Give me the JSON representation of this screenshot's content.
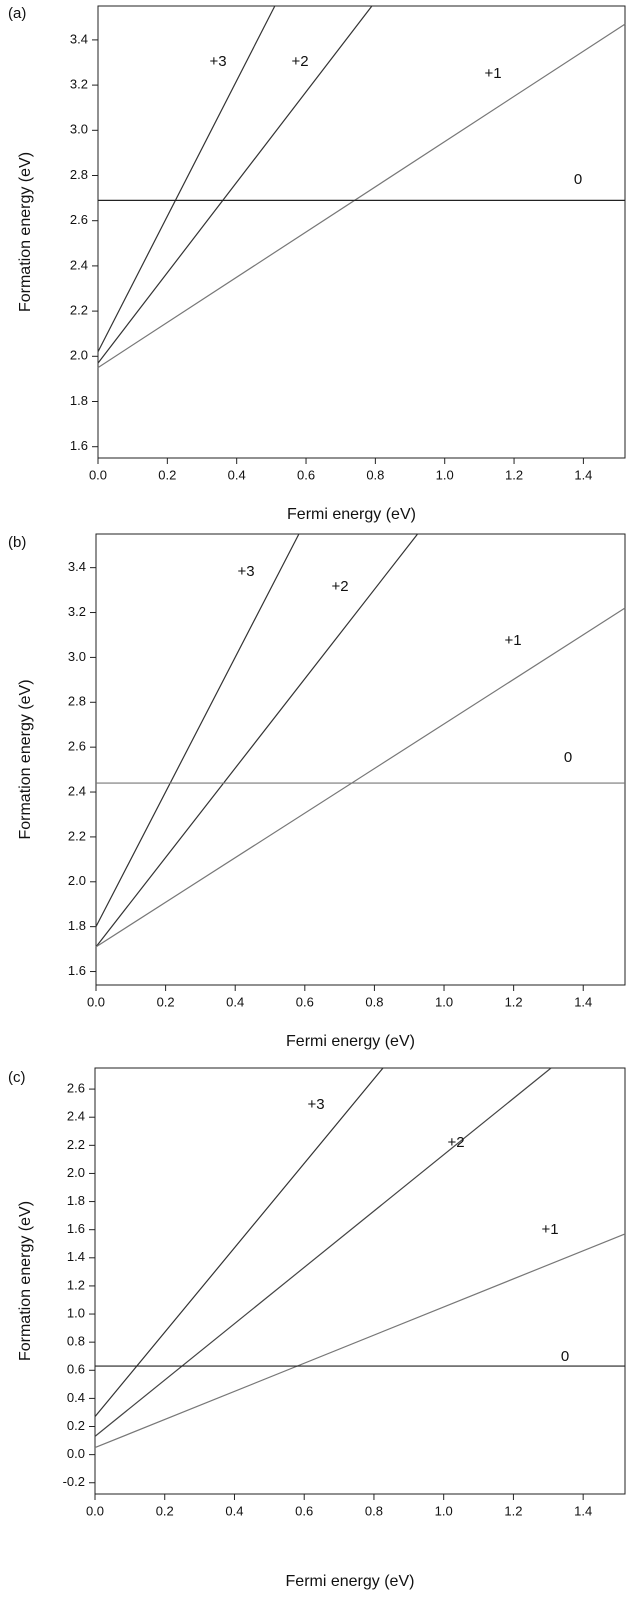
{
  "chart_data": [
    {
      "type": "line",
      "panel_label": "(a)",
      "xlabel": "Fermi energy (eV)",
      "ylabel": "Formation energy (eV)",
      "xlim": [
        0,
        1.52
      ],
      "ylim": [
        1.55,
        3.55
      ],
      "xticks": [
        {
          "value": 0,
          "label": "0.0"
        },
        0.2,
        0.4,
        0.6,
        0.8,
        {
          "value": 1,
          "label": "1.0"
        },
        1.2,
        1.4
      ],
      "yticks": [
        1.6,
        1.8,
        {
          "value": 2,
          "label": "2.0"
        },
        2.2,
        2.4,
        2.6,
        2.8,
        {
          "value": 3,
          "label": "3.0"
        },
        3.2,
        3.4
      ],
      "series": [
        {
          "name": "+3",
          "color": "#333333",
          "x": [
            0,
            0.51
          ],
          "values": [
            2.02,
            3.55
          ]
        },
        {
          "name": "+2",
          "color": "#333333",
          "x": [
            0,
            0.79
          ],
          "values": [
            1.97,
            3.55
          ]
        },
        {
          "name": "+1",
          "color": "#777777",
          "x": [
            0,
            1.52
          ],
          "values": [
            1.95,
            3.47
          ]
        },
        {
          "name": "0",
          "color": "#222222",
          "x": [
            0,
            1.52
          ],
          "values": [
            2.69,
            2.69
          ]
        }
      ]
    },
    {
      "type": "line",
      "panel_label": "(b)",
      "xlabel": "Fermi energy (eV)",
      "ylabel": "Formation energy (eV)",
      "xlim": [
        0,
        1.52
      ],
      "ylim": [
        1.54,
        3.55
      ],
      "xticks": [
        {
          "value": 0,
          "label": "0.0"
        },
        0.2,
        0.4,
        0.6,
        0.8,
        {
          "value": 1,
          "label": "1.0"
        },
        1.2,
        1.4
      ],
      "yticks": [
        1.6,
        1.8,
        {
          "value": 2,
          "label": "2.0"
        },
        2.2,
        2.4,
        2.6,
        2.8,
        {
          "value": 3,
          "label": "3.0"
        },
        3.2,
        3.4
      ],
      "series": [
        {
          "name": "+3",
          "color": "#333333",
          "x": [
            0,
            0.583
          ],
          "values": [
            1.8,
            3.55
          ]
        },
        {
          "name": "+2",
          "color": "#333333",
          "x": [
            0,
            0.924
          ],
          "values": [
            1.71,
            3.55
          ]
        },
        {
          "name": "+1",
          "color": "#777777",
          "x": [
            0,
            1.52
          ],
          "values": [
            1.71,
            3.22
          ]
        },
        {
          "name": "0",
          "color": "#777777",
          "x": [
            0,
            1.52
          ],
          "values": [
            2.44,
            2.44
          ]
        }
      ]
    },
    {
      "type": "line",
      "panel_label": "(c)",
      "xlabel": "Fermi energy (eV)",
      "ylabel": "Formation energy (eV)",
      "xlim": [
        0,
        1.52
      ],
      "ylim": [
        -0.28,
        2.75
      ],
      "xticks": [
        {
          "value": 0,
          "label": "0.0"
        },
        0.2,
        0.4,
        0.6,
        0.8,
        {
          "value": 1,
          "label": "1.0"
        },
        1.2,
        1.4
      ],
      "yticks": [
        -0.2,
        {
          "value": 0,
          "label": "0.0"
        },
        0.2,
        0.4,
        0.6,
        0.8,
        {
          "value": 1,
          "label": "1.0"
        },
        1.2,
        1.4,
        1.6,
        1.8,
        {
          "value": 2,
          "label": "2.0"
        },
        2.2,
        2.4,
        2.6
      ],
      "series": [
        {
          "name": "+3",
          "color": "#333333",
          "x": [
            0,
            0.826
          ],
          "values": [
            0.27,
            2.75
          ]
        },
        {
          "name": "+2",
          "color": "#444444",
          "x": [
            0,
            1.308
          ],
          "values": [
            0.13,
            2.75
          ]
        },
        {
          "name": "+1",
          "color": "#777777",
          "x": [
            0,
            1.52
          ],
          "values": [
            0.05,
            1.57
          ]
        },
        {
          "name": "0",
          "color": "#222222",
          "x": [
            0,
            1.52
          ],
          "values": [
            0.63,
            0.63
          ]
        }
      ]
    }
  ]
}
